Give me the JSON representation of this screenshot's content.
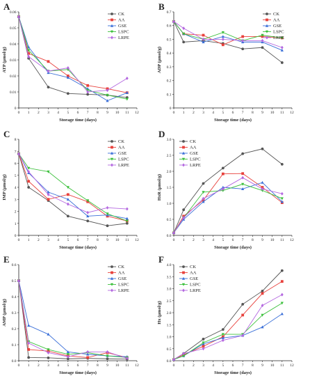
{
  "colors": {
    "CK": "#555555",
    "AA": "#e8413c",
    "GSE": "#3a6fd8",
    "LSPC": "#3cc03c",
    "LRPE": "#b468e0"
  },
  "chart_data": [
    {
      "panel": "A",
      "type": "line",
      "ylabel": "ATP (μmol/g)",
      "xlabel": "Storage time (days)",
      "xlim": [
        0,
        12
      ],
      "ylim": [
        0,
        0.06
      ],
      "yticks": [
        "0",
        "0.01",
        "0.02",
        "0.03",
        "0.04",
        "0.05",
        "0.06"
      ],
      "xticks": [
        "0",
        "1",
        "2",
        "3",
        "4",
        "5",
        "6",
        "7",
        "8",
        "9",
        "10",
        "11",
        "12"
      ],
      "legend": "top-right",
      "x": [
        0,
        1,
        3,
        5,
        7,
        9,
        11
      ],
      "series": [
        {
          "name": "CK",
          "values": [
            0.057,
            0.031,
            0.013,
            0.009,
            0.0085,
            0.008,
            0.0065
          ]
        },
        {
          "name": "AA",
          "values": [
            0.057,
            0.034,
            0.029,
            0.02,
            0.014,
            0.012,
            0.0095
          ]
        },
        {
          "name": "GSE",
          "values": [
            0.057,
            0.038,
            0.022,
            0.019,
            0.012,
            0.0045,
            0.0095
          ]
        },
        {
          "name": "LSPC",
          "values": [
            0.057,
            0.036,
            0.023,
            0.024,
            0.011,
            0.008,
            0.0055
          ]
        },
        {
          "name": "LRPE",
          "values": [
            0.057,
            0.032,
            0.023,
            0.025,
            0.01,
            0.011,
            0.0185
          ]
        }
      ]
    },
    {
      "panel": "B",
      "type": "line",
      "ylabel": "ADP (μmol/g)",
      "xlabel": "Storage time (days)",
      "xlim": [
        0,
        12
      ],
      "ylim": [
        0,
        0.7
      ],
      "yticks": [
        "0",
        "0.1",
        "0.2",
        "0.3",
        "0.4",
        "0.5",
        "0.6",
        "0.7"
      ],
      "xticks": [
        "0",
        "1",
        "2",
        "3",
        "4",
        "5",
        "6",
        "7",
        "8",
        "9",
        "10",
        "11",
        "12"
      ],
      "legend": "top-right",
      "x": [
        0,
        1,
        3,
        5,
        7,
        9,
        11
      ],
      "series": [
        {
          "name": "CK",
          "values": [
            0.63,
            0.48,
            0.49,
            0.47,
            0.43,
            0.44,
            0.33
          ]
        },
        {
          "name": "AA",
          "values": [
            0.63,
            0.54,
            0.53,
            0.46,
            0.52,
            0.52,
            0.51
          ]
        },
        {
          "name": "GSE",
          "values": [
            0.63,
            0.54,
            0.48,
            0.52,
            0.48,
            0.48,
            0.42
          ]
        },
        {
          "name": "LSPC",
          "values": [
            0.63,
            0.54,
            0.5,
            0.55,
            0.49,
            0.53,
            0.51
          ]
        },
        {
          "name": "LRPE",
          "values": [
            0.63,
            0.58,
            0.5,
            0.5,
            0.49,
            0.49,
            0.44
          ]
        }
      ]
    },
    {
      "panel": "C",
      "type": "line",
      "ylabel": "IMP (μmol/g)",
      "xlabel": "Storage time (days)",
      "xlim": [
        0,
        12
      ],
      "ylim": [
        0,
        8
      ],
      "yticks": [
        "0",
        "1",
        "2",
        "3",
        "4",
        "5",
        "6",
        "7",
        "8"
      ],
      "xticks": [
        "0",
        "1",
        "2",
        "3",
        "4",
        "5",
        "6",
        "7",
        "8",
        "9",
        "10",
        "11",
        "12"
      ],
      "legend": "top-right",
      "x": [
        0,
        1,
        3,
        5,
        7,
        9,
        11
      ],
      "series": [
        {
          "name": "CK",
          "values": [
            6.8,
            4.0,
            2.9,
            1.6,
            1.2,
            0.8,
            1.0
          ]
        },
        {
          "name": "AA",
          "values": [
            6.8,
            4.5,
            3.0,
            3.4,
            2.8,
            1.6,
            1.2
          ]
        },
        {
          "name": "GSE",
          "values": [
            6.8,
            5.2,
            3.6,
            3.0,
            1.6,
            1.7,
            1.4
          ]
        },
        {
          "name": "LSPC",
          "values": [
            6.8,
            5.6,
            5.3,
            4.0,
            2.9,
            1.8,
            1.2
          ]
        },
        {
          "name": "LRPE",
          "values": [
            6.8,
            5.3,
            3.4,
            2.6,
            1.9,
            2.3,
            2.2
          ]
        }
      ]
    },
    {
      "panel": "D",
      "type": "line",
      "ylabel": "HxR (μmol/g)",
      "xlabel": "Storage time (days)",
      "xlim": [
        0,
        12
      ],
      "ylim": [
        0,
        3.0
      ],
      "yticks": [
        "0.0",
        "0.5",
        "1.0",
        "1.5",
        "2.0",
        "2.5",
        "3.0"
      ],
      "xticks": [
        "0",
        "1",
        "2",
        "3",
        "4",
        "5",
        "6",
        "7",
        "8",
        "9",
        "10",
        "11",
        "12"
      ],
      "legend": "top-left",
      "x": [
        0,
        1,
        3,
        5,
        7,
        9,
        11
      ],
      "series": [
        {
          "name": "CK",
          "values": [
            0.08,
            0.8,
            1.62,
            2.1,
            2.55,
            2.7,
            2.22
          ]
        },
        {
          "name": "AA",
          "values": [
            0.08,
            0.6,
            1.1,
            1.92,
            1.93,
            1.5,
            1.02
          ]
        },
        {
          "name": "GSE",
          "values": [
            0.08,
            0.5,
            1.05,
            1.5,
            1.45,
            1.65,
            1.05
          ]
        },
        {
          "name": "LSPC",
          "values": [
            0.08,
            0.55,
            1.35,
            1.4,
            1.6,
            1.4,
            1.15
          ]
        },
        {
          "name": "LRPE",
          "values": [
            0.08,
            0.55,
            1.15,
            1.45,
            1.8,
            1.45,
            1.3
          ]
        }
      ]
    },
    {
      "panel": "E",
      "type": "line",
      "ylabel": "AMP (μmol/g)",
      "xlabel": "Storage time (days)",
      "xlim": [
        0,
        12
      ],
      "ylim": [
        0,
        0.6
      ],
      "yticks": [
        "0.0",
        "0.1",
        "0.2",
        "0.3",
        "0.4",
        "0.5",
        "0.6"
      ],
      "xticks": [
        "0",
        "1",
        "2",
        "3",
        "4",
        "5",
        "6",
        "7",
        "8",
        "9",
        "10",
        "11",
        "12"
      ],
      "legend": "top-right",
      "x": [
        0,
        1,
        3,
        5,
        7,
        9,
        11
      ],
      "series": [
        {
          "name": "CK",
          "values": [
            0.5,
            0.02,
            0.018,
            0.012,
            0.015,
            0.012,
            0.01
          ]
        },
        {
          "name": "AA",
          "values": [
            0.5,
            0.07,
            0.06,
            0.03,
            0.02,
            0.05,
            0.02
          ]
        },
        {
          "name": "GSE",
          "values": [
            0.5,
            0.22,
            0.165,
            0.055,
            0.04,
            0.03,
            0.025
          ]
        },
        {
          "name": "LSPC",
          "values": [
            0.5,
            0.12,
            0.07,
            0.04,
            0.05,
            0.03,
            0.02
          ]
        },
        {
          "name": "LRPE",
          "values": [
            0.5,
            0.11,
            0.05,
            0.025,
            0.055,
            0.055,
            0.015
          ]
        }
      ]
    },
    {
      "panel": "F",
      "type": "line",
      "ylabel": "Hx (μmol/g)",
      "xlabel": "Storage time (days)",
      "xlim": [
        0,
        12
      ],
      "ylim": [
        0,
        4.0
      ],
      "yticks": [
        "0.0",
        "0.5",
        "1.0",
        "1.5",
        "2.0",
        "2.5",
        "3.0",
        "3.5",
        "4.0"
      ],
      "xticks": [
        "0",
        "1",
        "2",
        "3",
        "4",
        "5",
        "6",
        "7",
        "8",
        "9",
        "10",
        "11",
        "12"
      ],
      "legend": "top-left",
      "x": [
        0,
        1,
        3,
        5,
        7,
        9,
        11
      ],
      "series": [
        {
          "name": "CK",
          "values": [
            0.05,
            0.3,
            0.9,
            1.3,
            2.35,
            2.9,
            3.75
          ]
        },
        {
          "name": "AA",
          "values": [
            0.05,
            0.25,
            0.6,
            1.0,
            1.9,
            2.8,
            3.3
          ]
        },
        {
          "name": "GSE",
          "values": [
            0.05,
            0.2,
            0.7,
            0.95,
            1.05,
            1.4,
            1.95
          ]
        },
        {
          "name": "LSPC",
          "values": [
            0.05,
            0.2,
            0.75,
            1.1,
            1.1,
            1.9,
            2.4
          ]
        },
        {
          "name": "LRPE",
          "values": [
            0.05,
            0.3,
            0.5,
            0.85,
            1.05,
            2.3,
            2.75
          ]
        }
      ]
    }
  ]
}
